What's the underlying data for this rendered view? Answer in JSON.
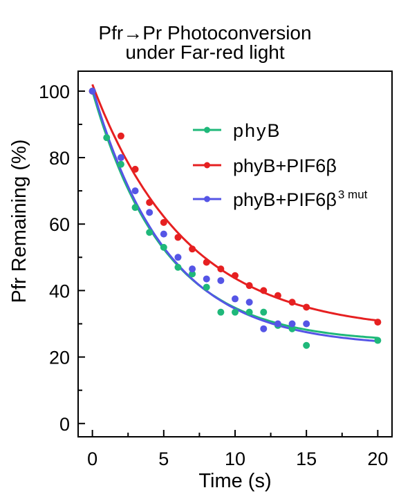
{
  "chart_data": {
    "type": "scatter",
    "title_line1": "Pfr→Pr Photoconversion",
    "title_line2": "under Far-red light",
    "xlabel": "Time (s)",
    "ylabel": "Pfr Remaining (%)",
    "xlim": [
      -1,
      21
    ],
    "ylim": [
      -4,
      106
    ],
    "xticks": [
      0,
      5,
      10,
      15,
      20
    ],
    "yticks": [
      0,
      20,
      40,
      60,
      80,
      100
    ],
    "grid": false,
    "legend_position": "top-right",
    "series": [
      {
        "name": "phyB",
        "color": "#1fb87a",
        "x": [
          0,
          1,
          2,
          3,
          4,
          5,
          6,
          7,
          8,
          9,
          10,
          11,
          12,
          13,
          14,
          15,
          20
        ],
        "y": [
          100,
          86,
          78,
          65,
          57.5,
          53,
          47,
          45,
          41,
          33.5,
          33.5,
          33.5,
          33.5,
          29.5,
          28.5,
          23.5,
          25
        ],
        "fit": {
          "a": 75.7,
          "k": 0.1974,
          "c": 24.3
        }
      },
      {
        "name": "phyB+PIF6β",
        "color": "#e62021",
        "x": [
          0,
          2,
          3,
          4,
          5,
          6,
          7,
          8,
          9,
          10,
          11,
          12,
          13,
          14,
          15,
          20
        ],
        "y": [
          100,
          86.5,
          76.5,
          66.5,
          60.5,
          56,
          52.5,
          48.5,
          46.5,
          44.5,
          41.5,
          40,
          38.5,
          36.5,
          35,
          30.5
        ],
        "fit": {
          "a": 74.6,
          "k": 0.1521,
          "c": 27.4
        }
      },
      {
        "name": "phyB+PIF6β",
        "name_superscript": "3 mut",
        "color": "#5555e6",
        "x": [
          0,
          2,
          3,
          4,
          5,
          6,
          7,
          8,
          9,
          10,
          11,
          12,
          13,
          14,
          15
        ],
        "y": [
          100,
          80,
          70,
          63.5,
          57,
          50,
          46.5,
          43.5,
          43,
          37.5,
          36.5,
          28.5,
          30,
          30,
          30
        ],
        "fit": {
          "a": 77.9,
          "k": 0.1918,
          "c": 23.1
        }
      }
    ]
  }
}
